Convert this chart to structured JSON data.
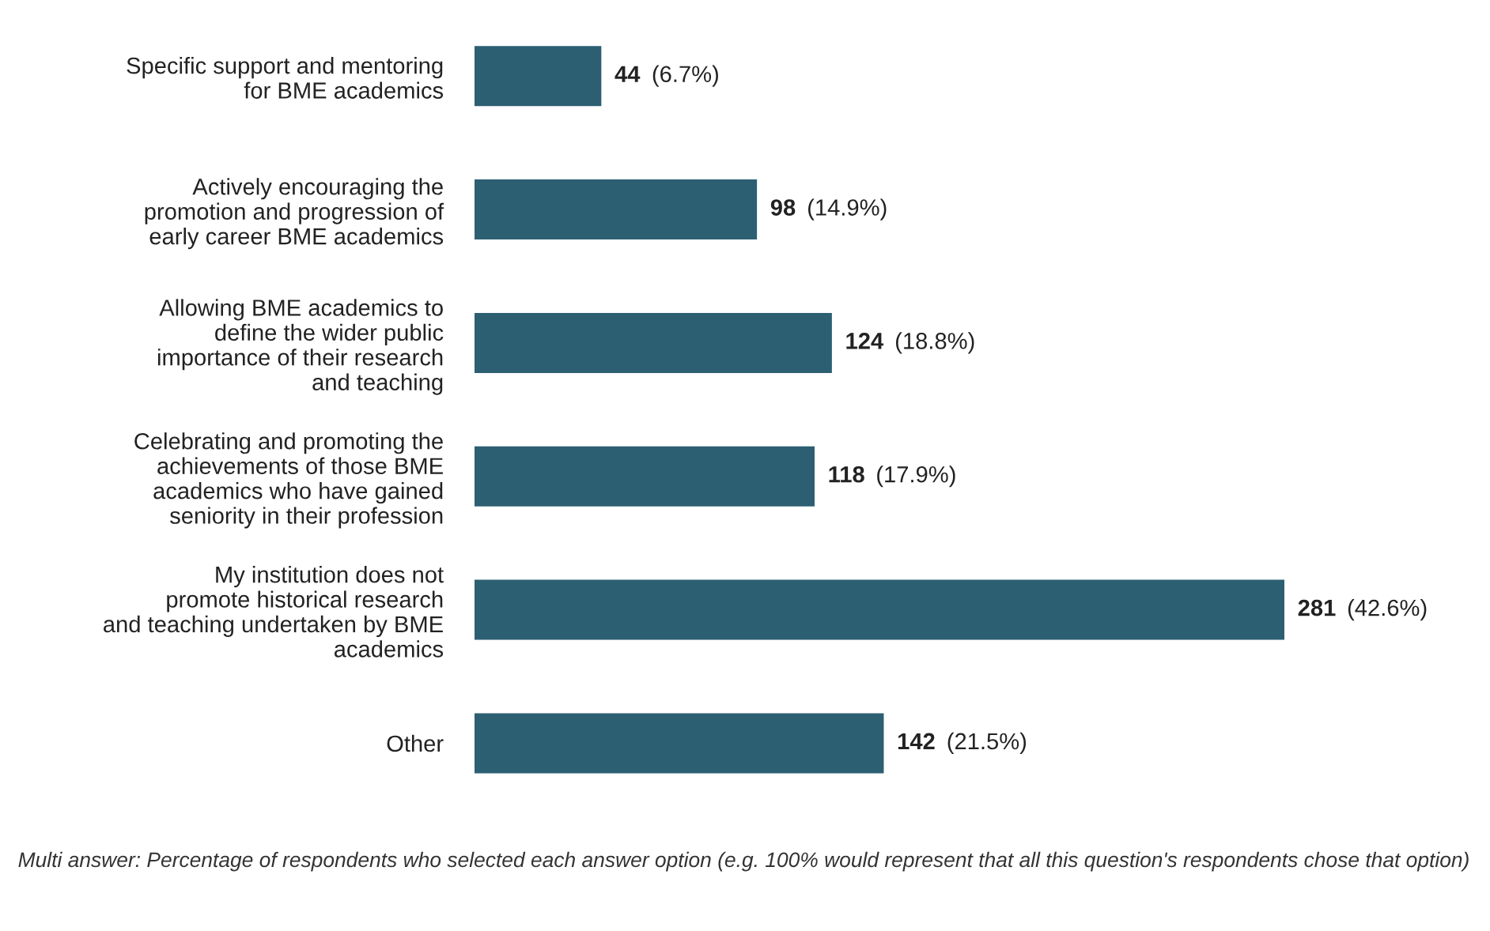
{
  "chart_data": {
    "type": "bar",
    "orientation": "horizontal",
    "categories": [
      "Specific support and mentoring\nfor BME academics",
      "Actively encouraging the\npromotion and progression of\nearly career BME academics",
      "Allowing BME academics to\ndefine the wider public\nimportance of their research\nand teaching",
      "Celebrating and promoting the\nachievements of those BME\nacademics who have gained\nseniority in their profession",
      "My institution does not\npromote historical research\nand teaching undertaken by BME\nacademics",
      "Other"
    ],
    "values": [
      44,
      98,
      124,
      118,
      281,
      142
    ],
    "value_labels": [
      "44 (6.7%)",
      "98 (14.9%)",
      "124 (18.8%)",
      "118 (17.9%)",
      "281 (42.6%)",
      "142 (21.5%)"
    ],
    "color": "#2d5f73",
    "annotations": [
      "Multi answer: Percentage of respondents who selected each answer option (e.g. 100% would represent that all this question's respondents chose that option)"
    ]
  }
}
